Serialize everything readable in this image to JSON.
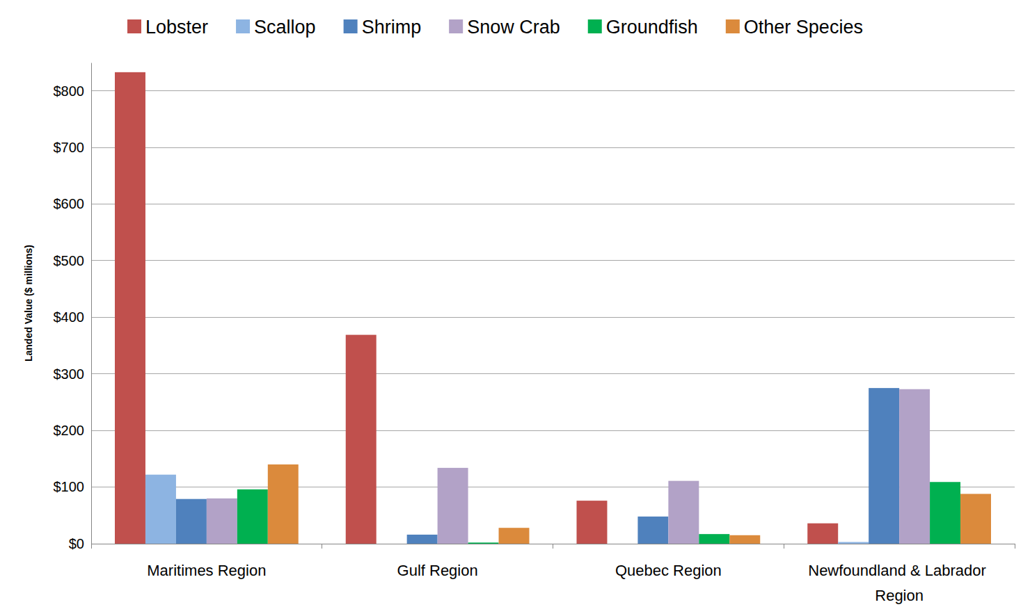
{
  "chart_data": {
    "type": "bar",
    "ylabel": "Landed Value ($ millions)",
    "categories": [
      "Maritimes Region",
      "Gulf Region",
      "Quebec Region",
      "Newfoundland & Labrador Region"
    ],
    "series": [
      {
        "name": "Lobster",
        "color": "#c0504d",
        "values": [
          833,
          369,
          76,
          36
        ]
      },
      {
        "name": "Scallop",
        "color": "#8db4e2",
        "values": [
          122,
          0,
          0,
          3
        ]
      },
      {
        "name": "Shrimp",
        "color": "#4f81bd",
        "values": [
          79,
          16,
          48,
          275
        ]
      },
      {
        "name": "Snow Crab",
        "color": "#b2a2c7",
        "values": [
          80,
          134,
          111,
          273
        ]
      },
      {
        "name": "Groundfish",
        "color": "#00b050",
        "values": [
          96,
          2,
          17,
          109
        ]
      },
      {
        "name": "Other Species",
        "color": "#db8a3c",
        "values": [
          140,
          28,
          15,
          88
        ]
      }
    ],
    "ylim": [
      0,
      850
    ],
    "yticks": [
      {
        "value": 0,
        "label": "$0"
      },
      {
        "value": 100,
        "label": "$100"
      },
      {
        "value": 200,
        "label": "$200"
      },
      {
        "value": 300,
        "label": "$300"
      },
      {
        "value": 400,
        "label": "$400"
      },
      {
        "value": 500,
        "label": "$500"
      },
      {
        "value": 600,
        "label": "$600"
      },
      {
        "value": 700,
        "label": "$700"
      },
      {
        "value": 800,
        "label": "$800"
      }
    ],
    "grid": true,
    "legend": "top",
    "stacked": false
  }
}
